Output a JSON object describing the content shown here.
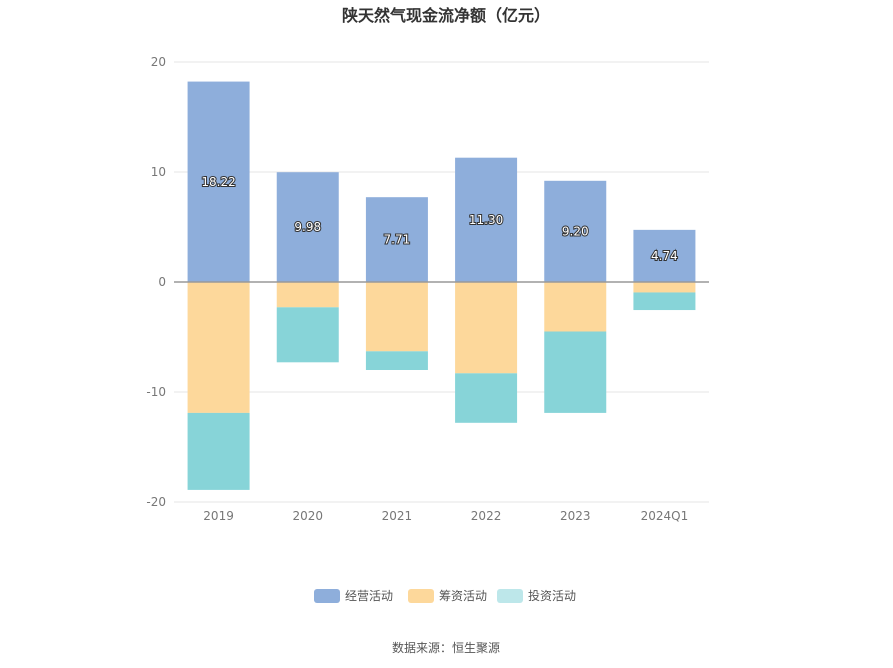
{
  "chart_data": {
    "type": "bar",
    "stacked": true,
    "title": "陕天然气现金流净额（亿元）",
    "categories": [
      "2019",
      "2020",
      "2021",
      "2022",
      "2023",
      "2024Q1"
    ],
    "series": [
      {
        "name": "经营活动",
        "color": "#8eaedb",
        "values": [
          18.22,
          9.98,
          7.71,
          11.3,
          9.2,
          4.74
        ],
        "labels": [
          "18.22",
          "9.98",
          "7.71",
          "11.30",
          "9.20",
          "4.74"
        ]
      },
      {
        "name": "筹资活动",
        "color": "#fdd89b",
        "values": [
          -11.9,
          -2.3,
          -6.3,
          -8.3,
          -4.5,
          -0.95
        ]
      },
      {
        "name": "投资活动",
        "color": "#87d4d8",
        "values": [
          -7.0,
          -5.0,
          -1.7,
          -4.5,
          -7.4,
          -1.6
        ]
      }
    ],
    "ylim": [
      -20,
      20
    ],
    "yticks": [
      20,
      10,
      0,
      -10,
      -20
    ],
    "xlabel": "",
    "ylabel": "",
    "grid": true,
    "legend": {
      "position": "bottom",
      "items": [
        "经营活动",
        "筹资活动",
        "投资活动"
      ]
    },
    "source": "数据来源：恒生聚源"
  }
}
